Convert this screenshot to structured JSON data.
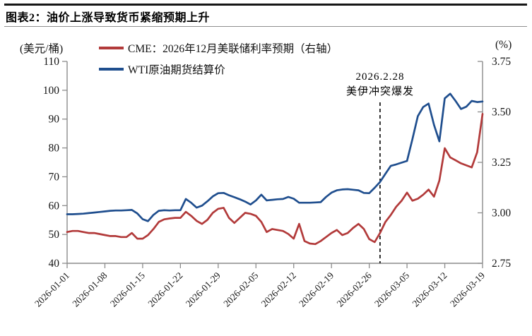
{
  "header": {
    "title": "图表2：油价上涨导致货币紧缩预期上升"
  },
  "chart_data": {
    "type": "line",
    "title": "图表2：油价上涨导致货币紧缩预期上升",
    "left_axis": {
      "label": "(美元/桶)",
      "min": 40,
      "max": 110,
      "ticks": [
        110,
        100,
        90,
        80,
        70,
        60,
        50,
        40
      ]
    },
    "right_axis": {
      "label": "(%)",
      "min": 2.75,
      "max": 3.75,
      "ticks": [
        "3.75",
        "3.50",
        "3.25",
        "3.00",
        "2.75"
      ]
    },
    "x_ticks": [
      "2026-01-01",
      "2026-01-08",
      "2026-01-15",
      "2026-01-22",
      "2026-01-29",
      "2026-02-05",
      "2026-02-12",
      "2026-02-19",
      "2026-02-26",
      "2026-03-05",
      "2026-03-12",
      "2026-03-19"
    ],
    "annotation": {
      "line1": "2026.2.28",
      "line2": "美伊冲突爆发",
      "date": "2026-02-28"
    },
    "grid": "off",
    "legend_position": "top-left",
    "dates": [
      "2026-01-01",
      "2026-01-02",
      "2026-01-03",
      "2026-01-04",
      "2026-01-05",
      "2026-01-06",
      "2026-01-07",
      "2026-01-08",
      "2026-01-09",
      "2026-01-10",
      "2026-01-11",
      "2026-01-12",
      "2026-01-13",
      "2026-01-14",
      "2026-01-15",
      "2026-01-16",
      "2026-01-17",
      "2026-01-18",
      "2026-01-19",
      "2026-01-20",
      "2026-01-21",
      "2026-01-22",
      "2026-01-23",
      "2026-01-24",
      "2026-01-25",
      "2026-01-26",
      "2026-01-27",
      "2026-01-28",
      "2026-01-29",
      "2026-01-30",
      "2026-01-31",
      "2026-02-01",
      "2026-02-02",
      "2026-02-03",
      "2026-02-04",
      "2026-02-05",
      "2026-02-06",
      "2026-02-07",
      "2026-02-08",
      "2026-02-09",
      "2026-02-10",
      "2026-02-11",
      "2026-02-12",
      "2026-02-13",
      "2026-02-14",
      "2026-02-15",
      "2026-02-16",
      "2026-02-17",
      "2026-02-18",
      "2026-02-19",
      "2026-02-20",
      "2026-02-21",
      "2026-02-22",
      "2026-02-23",
      "2026-02-24",
      "2026-02-25",
      "2026-02-26",
      "2026-02-27",
      "2026-02-28",
      "2026-03-01",
      "2026-03-02",
      "2026-03-03",
      "2026-03-04",
      "2026-03-05",
      "2026-03-06",
      "2026-03-07",
      "2026-03-08",
      "2026-03-09",
      "2026-03-10",
      "2026-03-11",
      "2026-03-12",
      "2026-03-13",
      "2026-03-14",
      "2026-03-15",
      "2026-03-16",
      "2026-03-17",
      "2026-03-18",
      "2026-03-19"
    ],
    "series": [
      {
        "name": "CME：2026年12月美联储利率预期（右轴）",
        "axis": "right",
        "color": "#b23a3a",
        "values": [
          2.905,
          2.91,
          2.91,
          2.905,
          2.9,
          2.9,
          2.895,
          2.89,
          2.885,
          2.885,
          2.88,
          2.88,
          2.9,
          2.872,
          2.872,
          2.89,
          2.92,
          2.955,
          2.968,
          2.972,
          2.975,
          2.975,
          3.005,
          2.985,
          2.96,
          2.945,
          2.965,
          3.0,
          3.02,
          3.025,
          2.975,
          2.95,
          2.975,
          3.0,
          2.995,
          2.985,
          2.955,
          2.905,
          2.92,
          2.915,
          2.91,
          2.895,
          2.872,
          2.945,
          2.86,
          2.848,
          2.845,
          2.86,
          2.88,
          2.9,
          2.915,
          2.89,
          2.9,
          2.925,
          2.945,
          2.92,
          2.87,
          2.855,
          2.9,
          2.955,
          2.99,
          3.03,
          3.06,
          3.1,
          3.06,
          3.07,
          3.09,
          3.115,
          3.08,
          3.16,
          3.32,
          3.275,
          3.26,
          3.245,
          3.235,
          3.225,
          3.3,
          3.49
        ]
      },
      {
        "name": "WTI原油期货结算价",
        "axis": "left",
        "color": "#1f4e8e",
        "values": [
          57.0,
          57.0,
          57.1,
          57.2,
          57.4,
          57.6,
          57.8,
          58.0,
          58.2,
          58.3,
          58.3,
          58.4,
          58.5,
          57.3,
          55.3,
          54.6,
          56.8,
          58.2,
          58.4,
          58.3,
          58.4,
          58.4,
          62.3,
          61.0,
          59.3,
          60.0,
          61.5,
          63.2,
          64.3,
          64.4,
          63.6,
          62.9,
          62.2,
          61.4,
          60.4,
          61.8,
          63.8,
          61.8,
          62.0,
          62.2,
          62.3,
          63.0,
          62.4,
          61.0,
          61.0,
          61.0,
          61.1,
          61.2,
          63.0,
          64.5,
          65.3,
          65.6,
          65.7,
          65.5,
          65.3,
          64.4,
          64.3,
          66.2,
          68.2,
          71.0,
          73.8,
          74.3,
          74.9,
          75.5,
          83.0,
          91.0,
          94.2,
          95.4,
          88.0,
          82.3,
          97.2,
          98.8,
          96.3,
          93.5,
          94.3,
          96.3,
          95.9,
          96.1
        ]
      }
    ]
  }
}
